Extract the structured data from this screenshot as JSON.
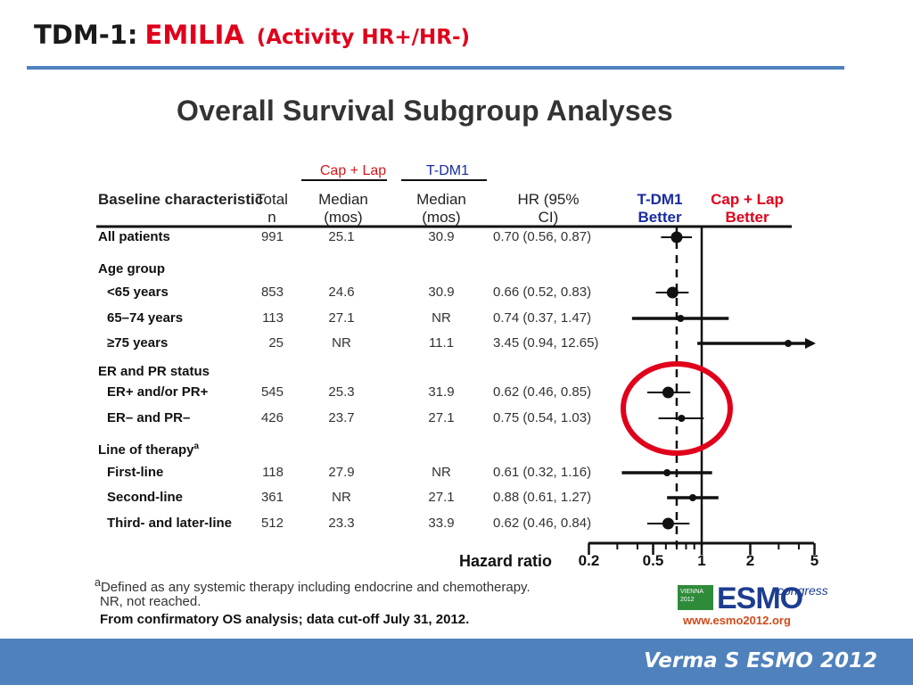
{
  "slide": {
    "title_prefix": "TDM-1:",
    "title_trial": "EMILIA",
    "title_note": "(Activity HR+/HR-)",
    "footer": "Verma S ESMO 2012"
  },
  "chart_data": {
    "type": "forest",
    "title": "Overall Survival Subgroup Analyses",
    "group_labels": {
      "cap_lap": "Cap + Lap",
      "tdm1": "T-DM1"
    },
    "columns": {
      "baseline": "Baseline characteristic",
      "total": "Total n",
      "median_cap": "Median (mos)",
      "median_tdm1": "Median (mos)",
      "hr": "HR (95% CI)",
      "tdm1_better": "T-DM1 Better",
      "cap_better": "Cap + Lap Better"
    },
    "rows": [
      {
        "label": "All patients",
        "n": "991",
        "cap": "25.1",
        "tdm": "30.9",
        "hr_text": "0.70 (0.56, 0.87)",
        "hr": 0.7,
        "lo": 0.56,
        "hi": 0.87
      },
      {
        "label": "Age group",
        "heading": true
      },
      {
        "label": "<65 years",
        "n": "853",
        "cap": "24.6",
        "tdm": "30.9",
        "hr_text": "0.66 (0.52, 0.83)",
        "hr": 0.66,
        "lo": 0.52,
        "hi": 0.83
      },
      {
        "label": "65–74 years",
        "n": "113",
        "cap": "27.1",
        "tdm": "NR",
        "hr_text": "0.74 (0.37, 1.47)",
        "hr": 0.74,
        "lo": 0.37,
        "hi": 1.47
      },
      {
        "label": "≥75 years",
        "n": "25",
        "cap": "NR",
        "tdm": "11.1",
        "hr_text": "3.45 (0.94, 12.65)",
        "hr": 3.45,
        "lo": 0.94,
        "hi": 12.65
      },
      {
        "label": "ER and PR status",
        "heading": true
      },
      {
        "label": "ER+ and/or PR+",
        "n": "545",
        "cap": "25.3",
        "tdm": "31.9",
        "hr_text": "0.62 (0.46, 0.85)",
        "hr": 0.62,
        "lo": 0.46,
        "hi": 0.85
      },
      {
        "label": "ER– and PR–",
        "n": "426",
        "cap": "23.7",
        "tdm": "27.1",
        "hr_text": "0.75 (0.54, 1.03)",
        "hr": 0.75,
        "lo": 0.54,
        "hi": 1.03
      },
      {
        "label": "Line of therapy",
        "heading": true,
        "sup": "a"
      },
      {
        "label": "First-line",
        "n": "118",
        "cap": "27.9",
        "tdm": "NR",
        "hr_text": "0.61 (0.32, 1.16)",
        "hr": 0.61,
        "lo": 0.32,
        "hi": 1.16
      },
      {
        "label": "Second-line",
        "n": "361",
        "cap": "NR",
        "tdm": "27.1",
        "hr_text": "0.88 (0.61, 1.27)",
        "hr": 0.88,
        "lo": 0.61,
        "hi": 1.27
      },
      {
        "label": "Third- and later-line",
        "n": "512",
        "cap": "23.3",
        "tdm": "33.9",
        "hr_text": "0.62 (0.46, 0.84)",
        "hr": 0.62,
        "lo": 0.46,
        "hi": 0.84
      }
    ],
    "x_axis": {
      "label": "Hazard ratio",
      "scale": "log",
      "ticks": [
        "0.2",
        "0.5",
        "1",
        "2",
        "5"
      ]
    },
    "reference_line": 1,
    "overall_line": 0.7,
    "highlight": "ER and PR status subgroups circled in red"
  },
  "footnotes": {
    "sup": "a",
    "line1": "Defined as any systemic therapy including endocrine and chemotherapy.",
    "line2": "NR, not reached.",
    "line3": "From confirmatory OS analysis; data cut-off July 31, 2012."
  },
  "logo": {
    "city": "VIENNA 2012",
    "name": "ESMO",
    "suffix": "congress",
    "url": "www.esmo2012.org",
    "colors": {
      "green": "#2e8b3a",
      "blue": "#1d3d8f",
      "orange": "#d04a1c"
    }
  },
  "colors": {
    "accent_blue": "#4f81bd",
    "red": "#e0001b",
    "tdm1_blue": "#1a2ca0"
  }
}
